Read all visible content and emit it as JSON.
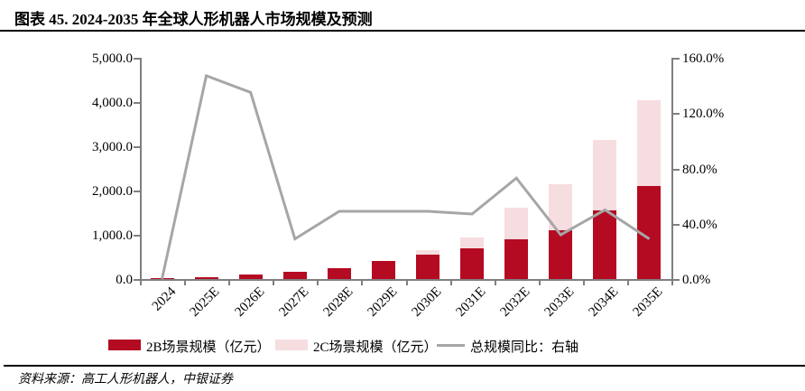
{
  "header": {
    "title": "图表 45. 2024-2035 年全球人形机器人市场规模及预测"
  },
  "footer": {
    "source": "资料来源：高工人形机器人，中银证券"
  },
  "colors": {
    "bar_2b": "#b40a22",
    "bar_2c": "#f6dde0",
    "yoy_line": "#a6a6a6",
    "axis": "#7f7f7f",
    "text": "#000000"
  },
  "legend": [
    {
      "label": "2B场景规模（亿元）",
      "swatch": "bar",
      "color": "#b40a22"
    },
    {
      "label": "2C场景规模（亿元）",
      "swatch": "bar",
      "color": "#f6dde0"
    },
    {
      "label": "总规模同比：右轴",
      "swatch": "line",
      "color": "#a6a6a6"
    }
  ],
  "chart_data": {
    "type": "bar",
    "subtype": "stacked-bars-with-line",
    "title": "图表 45. 2024-2035 年全球人形机器人市场规模及预测",
    "categories": [
      "2024",
      "2025E",
      "2026E",
      "2027E",
      "2028E",
      "2029E",
      "2030E",
      "2031E",
      "2032E",
      "2033E",
      "2034E",
      "2035E"
    ],
    "series": [
      {
        "name": "2B场景规模（亿元）",
        "type": "bar",
        "stack": "total",
        "color": "#b40a22",
        "values": [
          20,
          50,
          110,
          160,
          240,
          400,
          550,
          700,
          900,
          1100,
          1550,
          2100
        ]
      },
      {
        "name": "2C场景规模（亿元）",
        "type": "bar",
        "stack": "total",
        "color": "#f6dde0",
        "values": [
          0,
          0,
          0,
          0,
          0,
          0,
          100,
          230,
          710,
          1050,
          1600,
          1950
        ]
      },
      {
        "name": "总规模同比：右轴",
        "type": "line",
        "axis": "right",
        "color": "#a6a6a6",
        "values_pct": [
          0,
          147,
          135,
          29,
          49,
          49,
          49,
          47,
          73,
          32,
          50,
          29
        ]
      }
    ],
    "totals": [
      20,
      50,
      110,
      160,
      240,
      400,
      650,
      930,
      1610,
      2150,
      3150,
      4050
    ],
    "left_axis": {
      "min": 0,
      "max": 5000,
      "step": 1000,
      "labels": [
        "0.0",
        "1,000.0",
        "2,000.0",
        "3,000.0",
        "4,000.0",
        "5,000.0"
      ]
    },
    "right_axis": {
      "min_pct": 0,
      "max_pct": 160,
      "step_pct": 40,
      "labels": [
        "0.0%",
        "40.0%",
        "80.0%",
        "120.0%",
        "160.0%"
      ]
    },
    "grid": false,
    "legend_position": "bottom"
  }
}
